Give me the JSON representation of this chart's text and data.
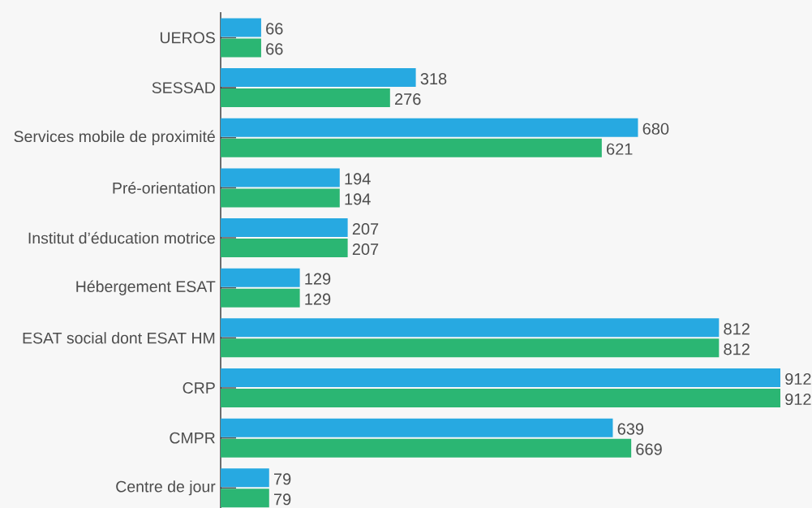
{
  "chart_data": {
    "type": "bar",
    "orientation": "horizontal",
    "data_labels": true,
    "categories": [
      "UEROS",
      "SESSAD",
      "Services mobile de proximité",
      "Pré-orientation",
      "Institut d’éducation motrice",
      "Hébergement ESAT",
      "ESAT social dont ESAT HM",
      "CRP",
      "CMPR",
      "Centre de jour"
    ],
    "series": [
      {
        "color": "#27a9e1",
        "values": [
          66,
          318,
          680,
          194,
          207,
          129,
          812,
          912,
          639,
          79
        ]
      },
      {
        "color": "#2bb673",
        "values": [
          66,
          276,
          621,
          194,
          207,
          129,
          812,
          912,
          669,
          79
        ]
      }
    ]
  }
}
